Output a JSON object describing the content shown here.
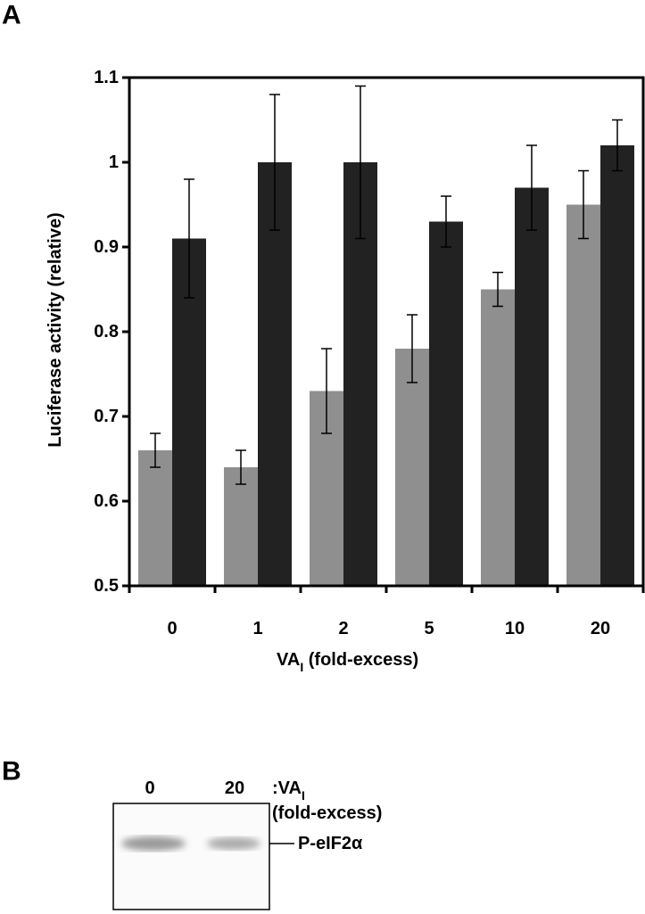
{
  "chart_data": {
    "type": "bar",
    "panel": "A",
    "categories": [
      "0",
      "1",
      "2",
      "5",
      "10",
      "20"
    ],
    "series": [
      {
        "color": "#8f8f8f",
        "values": [
          0.66,
          0.64,
          0.73,
          0.78,
          0.85,
          0.95
        ],
        "errors": [
          0.02,
          0.02,
          0.05,
          0.04,
          0.02,
          0.04
        ]
      },
      {
        "color": "#222222",
        "values": [
          0.91,
          1.0,
          1.0,
          0.93,
          0.97,
          1.02
        ],
        "errors": [
          0.07,
          0.08,
          0.09,
          0.03,
          0.05,
          0.03
        ]
      }
    ],
    "y_label": "Luciferase activity (relative)",
    "x_label": {
      "main": "VA",
      "sub": "I",
      "rest": " (fold-excess)"
    },
    "ylim": [
      0.5,
      1.1
    ],
    "yticks": [
      0.5,
      0.6,
      0.7,
      0.8,
      0.9,
      1,
      1.1
    ],
    "grid": false
  },
  "blot": {
    "panel": "B",
    "lanes": [
      "0",
      "20"
    ],
    "header": {
      "main": ":VA",
      "sub": "I",
      "rest": "(fold-excess)"
    },
    "band_label": "P-eIF2α"
  }
}
